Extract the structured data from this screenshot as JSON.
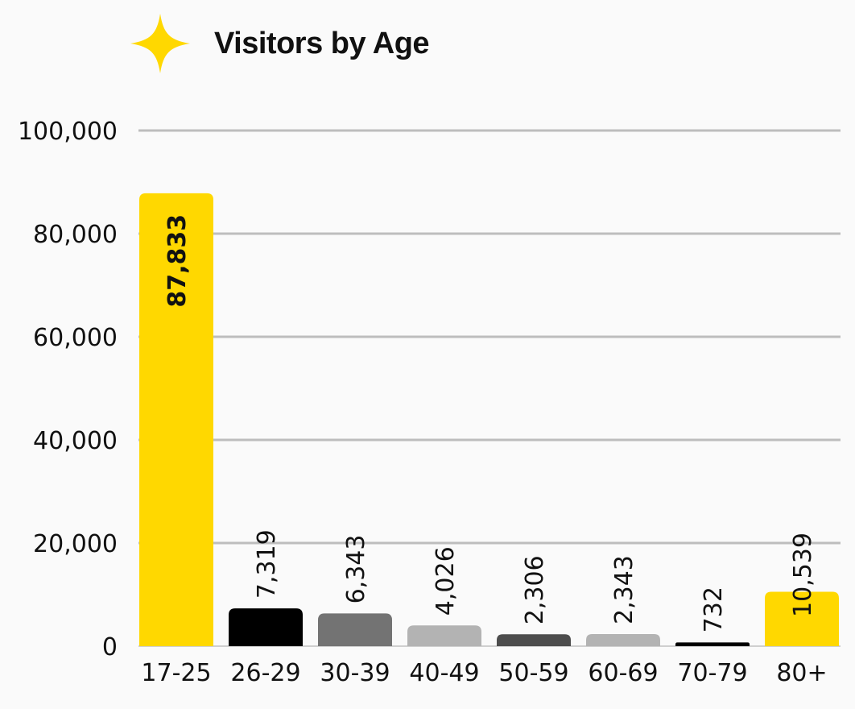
{
  "chart_data": {
    "type": "bar",
    "title": "Visitors by Age",
    "xlabel": "",
    "ylabel": "",
    "categories": [
      "17-25",
      "26-29",
      "30-39",
      "40-49",
      "50-59",
      "60-69",
      "70-79",
      "80+"
    ],
    "values": [
      87833,
      7319,
      6343,
      4026,
      2306,
      2343,
      732,
      10539
    ],
    "value_labels": [
      "87,833",
      "7,319",
      "6,343",
      "4,026",
      "2,306",
      "2,343",
      "732",
      "10,539"
    ],
    "bar_colors": [
      "#ffd800",
      "#000000",
      "#737373",
      "#b3b3b3",
      "#4d4d4d",
      "#b3b3b3",
      "#000000",
      "#ffd800"
    ],
    "ylim": [
      0,
      100000
    ],
    "yticks": [
      0,
      20000,
      40000,
      60000,
      80000,
      100000
    ],
    "ytick_labels": [
      "0",
      "20,000",
      "40,000",
      "60,000",
      "80,000",
      "100,000"
    ],
    "grid": true,
    "legend": "none"
  },
  "colors": {
    "accent": "#ffd800",
    "grid": "#bdbdbd"
  },
  "icons": {
    "title_icon": "four-point-star-icon"
  }
}
